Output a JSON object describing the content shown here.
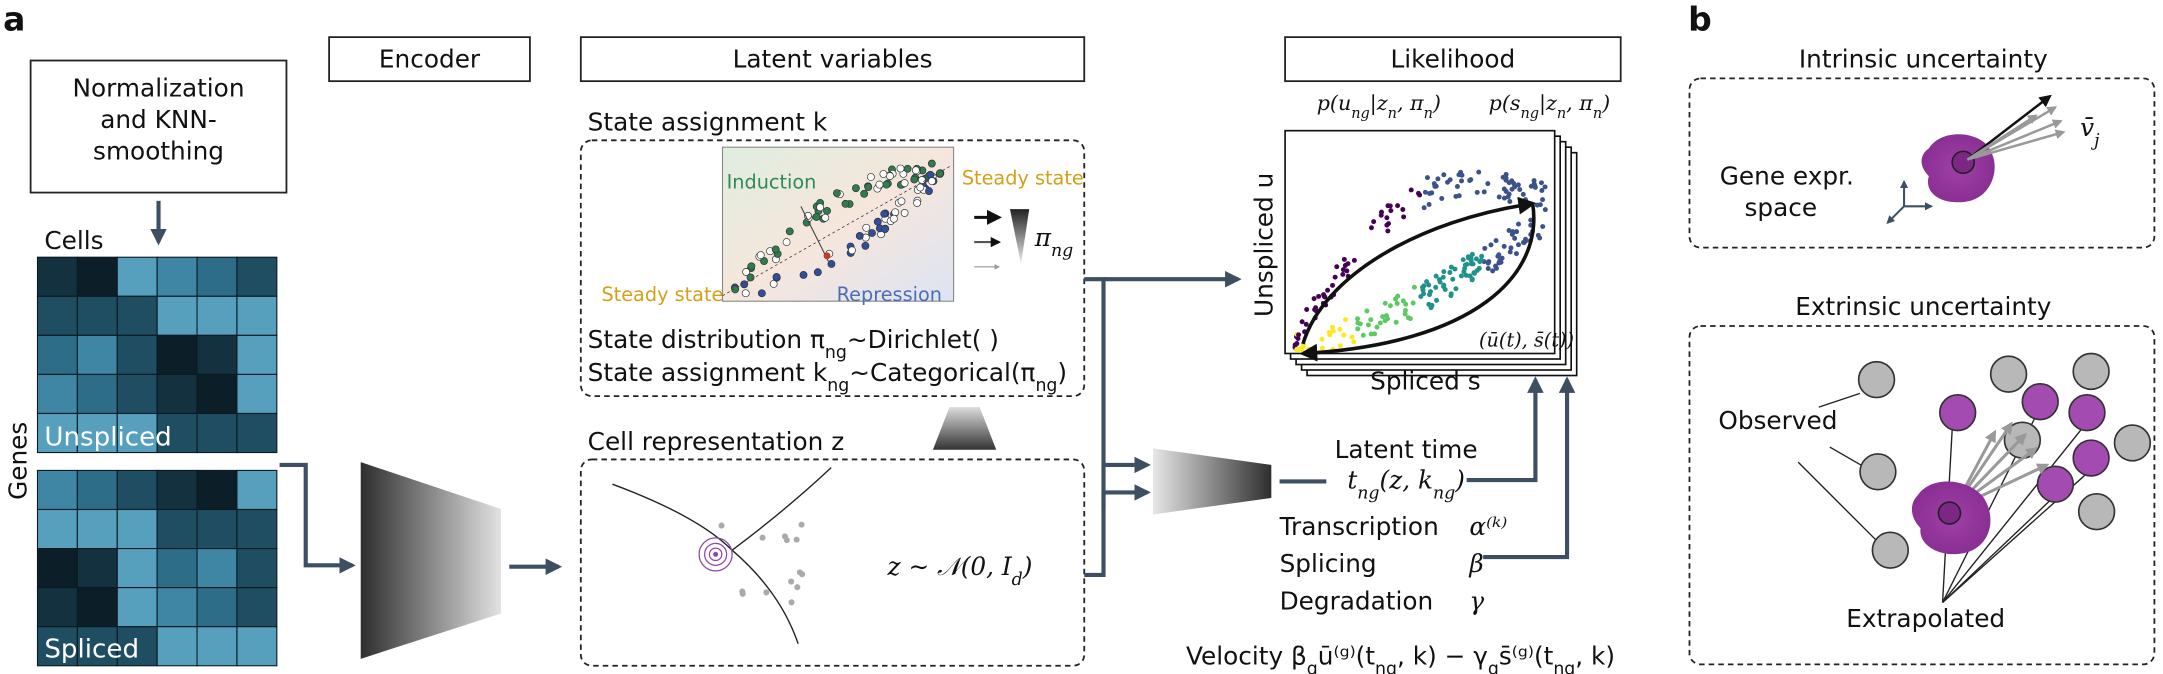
{
  "panel_a": {
    "label": "a",
    "preprocessing": {
      "lines": [
        "Normalization",
        "and KNN-",
        "smoothing"
      ],
      "cells": "Cells",
      "genes": "Genes",
      "unspliced": "Unspliced",
      "spliced": "Spliced"
    },
    "encoder": "Encoder",
    "latent_variables": {
      "title": "Latent variables",
      "state_assignment": {
        "title": "State assignment k",
        "induction": "Induction",
        "steady_state_top": "Steady state",
        "steady_state_bottom": "Steady state",
        "repression": "Repression",
        "pi": [
          "π",
          "ng"
        ],
        "distribution": [
          "State distribution π",
          "ng",
          "∼Dirichlet( )"
        ],
        "assignment": [
          "State assignment k",
          "ng",
          "∼Categorical(π",
          "ng",
          ")"
        ]
      },
      "cell_representation": {
        "title": "Cell representation z",
        "prior": [
          "z ∼ 𝒩(0, I",
          "d",
          ")"
        ]
      }
    },
    "likelihood": {
      "title": "Likelihood",
      "p_u": [
        "p(u",
        "ng",
        "|z",
        "n",
        ", π",
        "n",
        ")"
      ],
      "p_s": [
        "p(s",
        "ng",
        "|z",
        "n",
        ", π",
        "n",
        ")"
      ],
      "y_axis": "Unspliced u",
      "x_axis": "Spliced s",
      "trajectory": "(ū(t), s̄(t))"
    },
    "latent_time": {
      "title": "Latent time",
      "formula": [
        "t",
        "ng",
        "(z, k",
        "ng",
        ")"
      ]
    },
    "rates": [
      {
        "name": "Transcription",
        "symbol": "α⁽ᵏ⁾"
      },
      {
        "name": "Splicing",
        "symbol": "β"
      },
      {
        "name": "Degradation",
        "symbol": "γ"
      }
    ],
    "velocity": [
      "Velocity β",
      "g",
      "ū⁽ᵍ⁾(t",
      "ng",
      ", k) − γ",
      "g",
      "s̄⁽ᵍ⁾(t",
      "ng",
      ", k)"
    ]
  },
  "panel_b": {
    "label": "b",
    "intrinsic": {
      "title": "Intrinsic uncertainty",
      "space": [
        "Gene expr.",
        "space"
      ],
      "velocity": [
        "v̄",
        "j"
      ]
    },
    "extrinsic": {
      "title": "Extrinsic uncertainty",
      "observed": "Observed",
      "extrapolated": "Extrapolated"
    }
  }
}
